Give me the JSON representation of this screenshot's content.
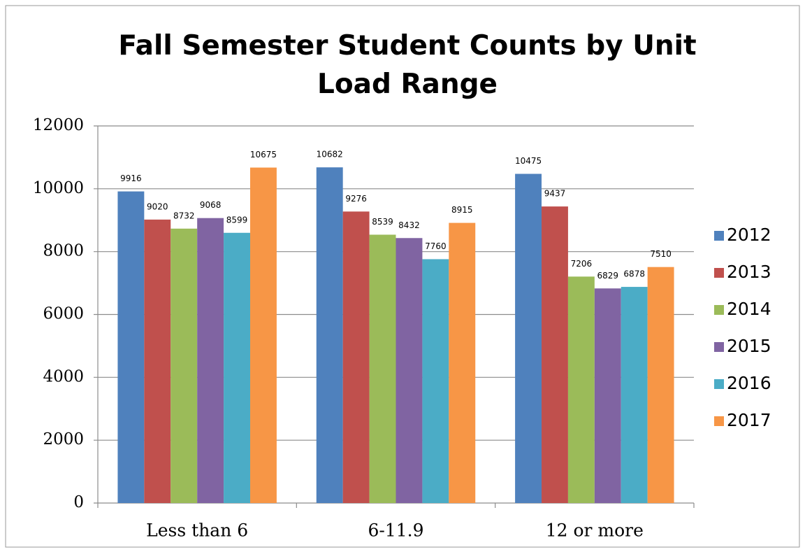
{
  "chart_data": {
    "type": "bar",
    "title": "Fall Semester Student Counts by Unit Load Range",
    "categories": [
      "Less than 6",
      "6-11.9",
      "12 or more"
    ],
    "series": [
      {
        "name": "2012",
        "color": "#4f81bd",
        "values": [
          9916,
          10682,
          10475
        ]
      },
      {
        "name": "2013",
        "color": "#c0504d",
        "values": [
          9020,
          9276,
          9437
        ]
      },
      {
        "name": "2014",
        "color": "#9bbb59",
        "values": [
          8732,
          8539,
          7206
        ]
      },
      {
        "name": "2015",
        "color": "#8064a2",
        "values": [
          9068,
          8432,
          6829
        ]
      },
      {
        "name": "2016",
        "color": "#4bacc6",
        "values": [
          8599,
          7760,
          6878
        ]
      },
      {
        "name": "2017",
        "color": "#f79646",
        "values": [
          10675,
          8915,
          7510
        ]
      }
    ],
    "ylim": [
      0,
      12000
    ],
    "yticks": [
      0,
      2000,
      4000,
      6000,
      8000,
      10000,
      12000
    ],
    "grid": true,
    "legend": "right"
  }
}
